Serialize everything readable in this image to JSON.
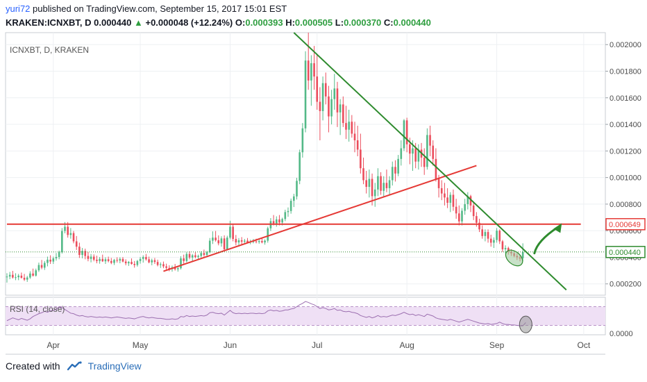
{
  "header": {
    "author": "yuri72",
    "published_text": "published on TradingView.com, September 15, 2017 15:01 EST",
    "symbol_line": "KRAKEN:ICNXBT, D",
    "last": "0.000440",
    "change_arrow": "▲",
    "change": "+0.000048 (+12.24%)",
    "o_label": "O:",
    "o_value": "0.000393",
    "h_label": "H:",
    "h_value": "0.000505",
    "l_label": "L:",
    "l_value": "0.000370",
    "c_label": "C:",
    "c_value": "0.000440"
  },
  "chart_label": "ICNXBT, D, KRAKEN",
  "rsi_label": "RSI (14, close)",
  "footer": {
    "created_with": "Created with",
    "brand": "TradingView"
  },
  "colors": {
    "up": "#53b987",
    "down": "#eb4d5c",
    "trend_green": "#2e8b2e",
    "support_red": "#e53935",
    "rsi_line": "#9c6fb0",
    "rsi_band": "#efe0f5",
    "grid": "#eef0f3"
  },
  "chart_data": {
    "type": "candlestick",
    "symbol": "KRAKEN:ICNXBT",
    "interval": "D",
    "y_ticks": [
      "0.002000",
      "0.001800",
      "0.001600",
      "0.001400",
      "0.001200",
      "0.001000",
      "0.000800",
      "0.000600",
      "0.000400",
      "0.000200"
    ],
    "ylim": [
      0.000115,
      0.00209
    ],
    "price_tags": [
      {
        "label": "0.000649",
        "value": 0.000649,
        "color": "#e53935"
      },
      {
        "label": "0.000440",
        "value": 0.00044,
        "color": "#2e8b2e"
      }
    ],
    "x_labels": [
      "Apr",
      "May",
      "Jun",
      "Jul",
      "Aug",
      "Sep",
      "Oct"
    ],
    "rsi_axis_label": "0.0000",
    "lines": [
      {
        "name": "resistance-horizontal",
        "color": "#e53935",
        "from": [
          "2017-03-16",
          0.000649
        ],
        "to": [
          "2017-09-30",
          0.000649
        ]
      },
      {
        "name": "support-trendline",
        "color": "#e53935",
        "from": [
          "2017-05-09",
          0.000295
        ],
        "to": [
          "2017-08-25",
          0.00109
        ]
      },
      {
        "name": "downtrend-line",
        "color": "#2e8b2e",
        "from": [
          "2017-06-23",
          0.00209
        ],
        "to": [
          "2017-09-25",
          0.000155
        ]
      }
    ],
    "candles": [
      [
        0.000253,
        0.00028,
        0.00021,
        0.000255
      ],
      [
        0.000255,
        0.00029,
        0.000235,
        0.000268
      ],
      [
        0.000268,
        0.000298,
        0.00024,
        0.000248
      ],
      [
        0.000248,
        0.00028,
        0.000228,
        0.00025
      ],
      [
        0.00025,
        0.000275,
        0.000228,
        0.000262
      ],
      [
        0.000262,
        0.000285,
        0.00024,
        0.000246
      ],
      [
        0.000246,
        0.000275,
        0.000222,
        0.000232
      ],
      [
        0.000232,
        0.00026,
        0.000215,
        0.000248
      ],
      [
        0.000248,
        0.000295,
        0.000238,
        0.000278
      ],
      [
        0.000278,
        0.000315,
        0.000255,
        0.000262
      ],
      [
        0.000262,
        0.000315,
        0.000255,
        0.000302
      ],
      [
        0.000302,
        0.00036,
        0.00029,
        0.000342
      ],
      [
        0.000342,
        0.00038,
        0.00031,
        0.000322
      ],
      [
        0.000322,
        0.000372,
        0.000305,
        0.000358
      ],
      [
        0.000358,
        0.000405,
        0.000332,
        0.000382
      ],
      [
        0.000382,
        0.000415,
        0.00035,
        0.000368
      ],
      [
        0.000368,
        0.000405,
        0.00035,
        0.000392
      ],
      [
        0.000392,
        0.000432,
        0.000375,
        0.000402
      ],
      [
        0.000402,
        0.00045,
        0.000385,
        0.000438
      ],
      [
        0.000438,
        0.00062,
        0.000428,
        0.000598
      ],
      [
        0.000598,
        0.000665,
        0.00058,
        0.00063
      ],
      [
        0.00063,
        0.000665,
        0.000548,
        0.000568
      ],
      [
        0.000568,
        0.00062,
        0.00054,
        0.000582
      ],
      [
        0.000582,
        0.000598,
        0.000505,
        0.00052
      ],
      [
        0.00052,
        0.00056,
        0.000455,
        0.00048
      ],
      [
        0.00048,
        0.00051,
        0.000395,
        0.000418
      ],
      [
        0.000418,
        0.00047,
        0.000392,
        0.000448
      ],
      [
        0.000448,
        0.000465,
        0.000385,
        0.00041
      ],
      [
        0.00041,
        0.00044,
        0.00037,
        0.000388
      ],
      [
        0.000388,
        0.000425,
        0.000362,
        0.000405
      ],
      [
        0.000405,
        0.000422,
        0.00037,
        0.000382
      ],
      [
        0.000382,
        0.000412,
        0.000355,
        0.000372
      ],
      [
        0.000372,
        0.000402,
        0.000352,
        0.000388
      ],
      [
        0.000388,
        0.00042,
        0.000365,
        0.00037
      ],
      [
        0.00037,
        0.0004,
        0.00035,
        0.000385
      ],
      [
        0.000385,
        0.000405,
        0.000362,
        0.000372
      ],
      [
        0.000372,
        0.000395,
        0.000348,
        0.000358
      ],
      [
        0.000358,
        0.000388,
        0.000342,
        0.00038
      ],
      [
        0.00038,
        0.0004,
        0.00036,
        0.000375
      ],
      [
        0.000375,
        0.0004,
        0.000355,
        0.000388
      ],
      [
        0.000388,
        0.000402,
        0.000362,
        0.000368
      ],
      [
        0.000368,
        0.000385,
        0.00034,
        0.000355
      ],
      [
        0.000355,
        0.000372,
        0.000335,
        0.000365
      ],
      [
        0.000365,
        0.000392,
        0.000345,
        0.00035
      ],
      [
        0.00035,
        0.000372,
        0.000322,
        0.000342
      ],
      [
        0.000342,
        0.00038,
        0.00033,
        0.000372
      ],
      [
        0.000372,
        0.000402,
        0.000352,
        0.000388
      ],
      [
        0.000388,
        0.000415,
        0.00036,
        0.000402
      ],
      [
        0.000402,
        0.000425,
        0.000375,
        0.000385
      ],
      [
        0.000385,
        0.000405,
        0.000355,
        0.000362
      ],
      [
        0.000362,
        0.00039,
        0.00034,
        0.000378
      ],
      [
        0.000378,
        0.000395,
        0.00035,
        0.000365
      ],
      [
        0.000365,
        0.000382,
        0.000332,
        0.000342
      ],
      [
        0.000342,
        0.000362,
        0.00032,
        0.000348
      ],
      [
        0.000348,
        0.000368,
        0.000318,
        0.000332
      ],
      [
        0.000332,
        0.000352,
        0.000305,
        0.00032
      ],
      [
        0.00032,
        0.00034,
        0.000295,
        0.000312
      ],
      [
        0.000312,
        0.000338,
        0.000292,
        0.000325
      ],
      [
        0.000325,
        0.00035,
        0.0003,
        0.00031
      ],
      [
        0.00031,
        0.000332,
        0.000292,
        0.000318
      ],
      [
        0.000318,
        0.000408,
        0.000308,
        0.000392
      ],
      [
        0.000392,
        0.00042,
        0.000352,
        0.000372
      ],
      [
        0.000372,
        0.000438,
        0.000362,
        0.000425
      ],
      [
        0.000425,
        0.000445,
        0.000385,
        0.000398
      ],
      [
        0.000398,
        0.000425,
        0.000372,
        0.000415
      ],
      [
        0.000415,
        0.000438,
        0.000392,
        0.000402
      ],
      [
        0.000402,
        0.00042,
        0.00038,
        0.00041
      ],
      [
        0.00041,
        0.000445,
        0.000398,
        0.000432
      ],
      [
        0.000432,
        0.000458,
        0.000405,
        0.000418
      ],
      [
        0.000418,
        0.000448,
        0.0004,
        0.000438
      ],
      [
        0.000438,
        0.000545,
        0.00043,
        0.000525
      ],
      [
        0.000525,
        0.000595,
        0.0005,
        0.000548
      ],
      [
        0.000548,
        0.000598,
        0.000518,
        0.000528
      ],
      [
        0.000528,
        0.000565,
        0.00049,
        0.000505
      ],
      [
        0.000505,
        0.000558,
        0.00048,
        0.000542
      ],
      [
        0.000542,
        0.000565,
        0.000448,
        0.00046
      ],
      [
        0.00046,
        0.000562,
        0.000452,
        0.000548
      ],
      [
        0.000548,
        0.000675,
        0.000535,
        0.00063
      ],
      [
        0.00063,
        0.000652,
        0.00052,
        0.000538
      ],
      [
        0.000538,
        0.000568,
        0.00049,
        0.000512
      ],
      [
        0.000512,
        0.000545,
        0.00048,
        0.000528
      ],
      [
        0.000528,
        0.000552,
        0.000495,
        0.000518
      ],
      [
        0.000518,
        0.000538,
        0.000498,
        0.000525
      ],
      [
        0.000525,
        0.000545,
        0.000505,
        0.000512
      ],
      [
        0.000512,
        0.000532,
        0.000498,
        0.000518
      ],
      [
        0.000518,
        0.000538,
        0.000505,
        0.00052
      ],
      [
        0.00052,
        0.00054,
        0.000505,
        0.000515
      ],
      [
        0.000515,
        0.000535,
        0.000502,
        0.000522
      ],
      [
        0.000522,
        0.000545,
        0.000505,
        0.000512
      ],
      [
        0.000512,
        0.000535,
        0.000495,
        0.000525
      ],
      [
        0.000525,
        0.00063,
        0.00051,
        0.000618
      ],
      [
        0.000618,
        0.000695,
        0.000598,
        0.000672
      ],
      [
        0.000672,
        0.000718,
        0.00064,
        0.000655
      ],
      [
        0.000655,
        0.000708,
        0.00063,
        0.000685
      ],
      [
        0.000685,
        0.000718,
        0.00064,
        0.000662
      ],
      [
        0.000662,
        0.000698,
        0.00064,
        0.000688
      ],
      [
        0.000688,
        0.000758,
        0.000672,
        0.00074
      ],
      [
        0.00074,
        0.000775,
        0.000705,
        0.000748
      ],
      [
        0.000748,
        0.000842,
        0.000728,
        0.000825
      ],
      [
        0.000825,
        0.000878,
        0.000778,
        0.000858
      ],
      [
        0.000858,
        0.000998,
        0.000835,
        0.000975
      ],
      [
        0.000975,
        0.00121,
        0.00095,
        0.00119
      ],
      [
        0.00119,
        0.00141,
        0.00115,
        0.00137
      ],
      [
        0.00137,
        0.00195,
        0.00134,
        0.00188
      ],
      [
        0.00188,
        0.00209,
        0.00166,
        0.00173
      ],
      [
        0.00173,
        0.00192,
        0.00154,
        0.00186
      ],
      [
        0.00186,
        0.00199,
        0.00166,
        0.00176
      ],
      [
        0.00176,
        0.00192,
        0.00151,
        0.00157
      ],
      [
        0.00157,
        0.00168,
        0.00128,
        0.0015
      ],
      [
        0.0015,
        0.00176,
        0.00143,
        0.00171
      ],
      [
        0.00171,
        0.00179,
        0.00155,
        0.00161
      ],
      [
        0.00161,
        0.00169,
        0.00134,
        0.00146
      ],
      [
        0.00146,
        0.00166,
        0.0014,
        0.00159
      ],
      [
        0.00159,
        0.00178,
        0.00151,
        0.00167
      ],
      [
        0.00167,
        0.00172,
        0.00138,
        0.00149
      ],
      [
        0.00149,
        0.00159,
        0.00132,
        0.00155
      ],
      [
        0.00155,
        0.00161,
        0.00138,
        0.00141
      ],
      [
        0.00141,
        0.00154,
        0.00129,
        0.00136
      ],
      [
        0.00136,
        0.00151,
        0.00127,
        0.00142
      ],
      [
        0.00142,
        0.00147,
        0.0013,
        0.00133
      ],
      [
        0.00133,
        0.00142,
        0.00119,
        0.00128
      ],
      [
        0.00128,
        0.00139,
        0.00116,
        0.00121
      ],
      [
        0.00121,
        0.00133,
        0.00103,
        0.00107
      ],
      [
        0.00107,
        0.00115,
        0.00095,
        0.00098
      ],
      [
        0.00098,
        0.00105,
        0.00088,
        0.00093
      ],
      [
        0.00093,
        0.00106,
        0.00085,
        0.00099
      ],
      [
        0.00099,
        0.00103,
        0.00079,
        0.00086
      ],
      [
        0.00086,
        0.00096,
        0.00078,
        0.00091
      ],
      [
        0.00091,
        0.00107,
        0.00086,
        0.00101
      ],
      [
        0.00101,
        0.00104,
        0.00087,
        0.0009
      ],
      [
        0.0009,
        0.00101,
        0.00085,
        0.00096
      ],
      [
        0.00096,
        0.00106,
        0.00089,
        0.00092
      ],
      [
        0.00092,
        0.00101,
        0.00087,
        0.00098
      ],
      [
        0.00098,
        0.00112,
        0.00094,
        0.00108
      ],
      [
        0.00108,
        0.00113,
        0.00097,
        0.00103
      ],
      [
        0.00103,
        0.00117,
        0.00101,
        0.00114
      ],
      [
        0.00114,
        0.00128,
        0.00109,
        0.00122
      ],
      [
        0.00122,
        0.00144,
        0.0012,
        0.00143
      ],
      [
        0.00143,
        0.00145,
        0.00119,
        0.00125
      ],
      [
        0.00125,
        0.0013,
        0.0011,
        0.00118
      ],
      [
        0.00118,
        0.00128,
        0.00105,
        0.00122
      ],
      [
        0.00122,
        0.00126,
        0.00107,
        0.00112
      ],
      [
        0.00112,
        0.00125,
        0.00106,
        0.00121
      ],
      [
        0.00121,
        0.00126,
        0.00108,
        0.00115
      ],
      [
        0.00115,
        0.00122,
        0.00102,
        0.00108
      ],
      [
        0.00108,
        0.00137,
        0.00106,
        0.00132
      ],
      [
        0.00132,
        0.00139,
        0.00116,
        0.00124
      ],
      [
        0.00124,
        0.00128,
        0.00109,
        0.00114
      ],
      [
        0.00114,
        0.00122,
        0.00097,
        0.00099
      ],
      [
        0.00099,
        0.00102,
        0.00085,
        0.00092
      ],
      [
        0.00092,
        0.00098,
        0.00083,
        0.00088
      ],
      [
        0.00088,
        0.00096,
        0.00079,
        0.00085
      ],
      [
        0.00085,
        0.00092,
        0.00077,
        0.00081
      ],
      [
        0.00081,
        0.00089,
        0.00074,
        0.00087
      ],
      [
        0.00087,
        0.00091,
        0.00075,
        0.00078
      ],
      [
        0.00078,
        0.00084,
        0.00069,
        0.00073
      ],
      [
        0.00073,
        0.00079,
        0.00064,
        0.00067
      ],
      [
        0.00067,
        0.00077,
        0.00064,
        0.00075
      ],
      [
        0.00075,
        0.00084,
        0.00072,
        0.0008
      ],
      [
        0.0008,
        0.00089,
        0.00076,
        0.00086
      ],
      [
        0.00086,
        0.00087,
        0.00074,
        0.00079
      ],
      [
        0.00079,
        0.00082,
        0.00068,
        0.00071
      ],
      [
        0.00071,
        0.00074,
        0.00063,
        0.00066
      ],
      [
        0.00066,
        0.00069,
        0.00059,
        0.00061
      ],
      [
        0.00061,
        0.00064,
        0.00054,
        0.00056
      ],
      [
        0.00056,
        0.00061,
        0.00052,
        0.00059
      ],
      [
        0.00059,
        0.00061,
        0.00051,
        0.00054
      ],
      [
        0.00054,
        0.00057,
        0.00048,
        0.00051
      ],
      [
        0.00051,
        0.00055,
        0.00047,
        0.00053
      ],
      [
        0.00053,
        0.00062,
        0.00051,
        0.0006
      ],
      [
        0.0006,
        0.00061,
        0.0005,
        0.00052
      ],
      [
        0.00052,
        0.00053,
        0.00044,
        0.00046
      ],
      [
        0.00046,
        0.00049,
        0.00043,
        0.00047
      ],
      [
        0.00047,
        0.00048,
        0.00042,
        0.00044
      ],
      [
        0.00044,
        0.00046,
        0.00041,
        0.00043
      ],
      [
        0.00043,
        0.00045,
        0.0004,
        0.00041
      ],
      [
        0.00041,
        0.00043,
        0.00038,
        0.0004
      ],
      [
        0.0004,
        0.00042,
        0.00037,
        0.00039
      ],
      [
        0.000393,
        0.000505,
        0.00037,
        0.00044
      ]
    ],
    "rsi_values": [
      40,
      43,
      46,
      44,
      42,
      45,
      43,
      41,
      44,
      49,
      52,
      55,
      57,
      60,
      58,
      61,
      62,
      64,
      70,
      68,
      64,
      60,
      56,
      55,
      52,
      50,
      51,
      49,
      48,
      49,
      48,
      47,
      48,
      47,
      48,
      47,
      46,
      47,
      48,
      47,
      46,
      45,
      46,
      45,
      44,
      46,
      48,
      49,
      47,
      46,
      47,
      46,
      45,
      45,
      44,
      43,
      43,
      44,
      43,
      44,
      49,
      48,
      51,
      49,
      50,
      49,
      50,
      51,
      50,
      52,
      57,
      58,
      56,
      55,
      56,
      52,
      57,
      62,
      57,
      55,
      56,
      55,
      56,
      55,
      56,
      56,
      55,
      56,
      55,
      56,
      61,
      63,
      61,
      62,
      60,
      61,
      63,
      63,
      65,
      66,
      70,
      74,
      77,
      81,
      79,
      76,
      74,
      70,
      66,
      68,
      66,
      63,
      64,
      66,
      62,
      63,
      60,
      59,
      60,
      58,
      57,
      55,
      51,
      49,
      47,
      49,
      46,
      48,
      51,
      48,
      49,
      48,
      50,
      52,
      51,
      53,
      55,
      58,
      55,
      53,
      54,
      51,
      53,
      51,
      49,
      54,
      52,
      50,
      46,
      44,
      43,
      42,
      41,
      43,
      41,
      39,
      37,
      39,
      41,
      43,
      41,
      39,
      37,
      35,
      34,
      33,
      34,
      32,
      33,
      34,
      37,
      34,
      32,
      32,
      31,
      31,
      30,
      29,
      29,
      36
    ],
    "rsi_band": [
      30,
      70
    ],
    "rsi_ylim": [
      10,
      90
    ]
  }
}
